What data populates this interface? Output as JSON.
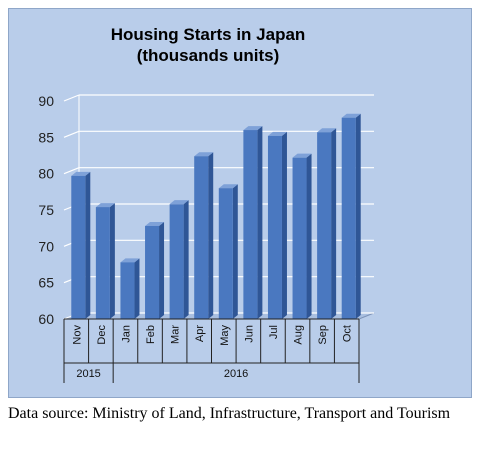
{
  "chart_data": {
    "type": "bar",
    "title_lines": [
      "Housing Starts in Japan",
      "(thousands units)"
    ],
    "categories": [
      "Nov",
      "Dec",
      "Jan",
      "Feb",
      "Mar",
      "Apr",
      "May",
      "Jun",
      "Jul",
      "Aug",
      "Sep",
      "Oct"
    ],
    "values": [
      79.7,
      75.4,
      67.8,
      72.8,
      75.8,
      82.4,
      78.0,
      86.0,
      85.2,
      82.2,
      85.7,
      87.7
    ],
    "year_groups": [
      {
        "label": "2015",
        "count": 2
      },
      {
        "label": "2016",
        "count": 10
      }
    ],
    "ylim": [
      60,
      90
    ],
    "yticks": [
      60,
      65,
      70,
      75,
      80,
      85,
      90
    ],
    "grid": true,
    "colors": {
      "bar_front": "#4a78c0",
      "bar_side": "#2f5696",
      "bar_top": "#7ea1d8",
      "background": "#b9cdea"
    }
  },
  "source_note": "Data source: Ministry of Land, Infrastructure, Transport and Tourism"
}
